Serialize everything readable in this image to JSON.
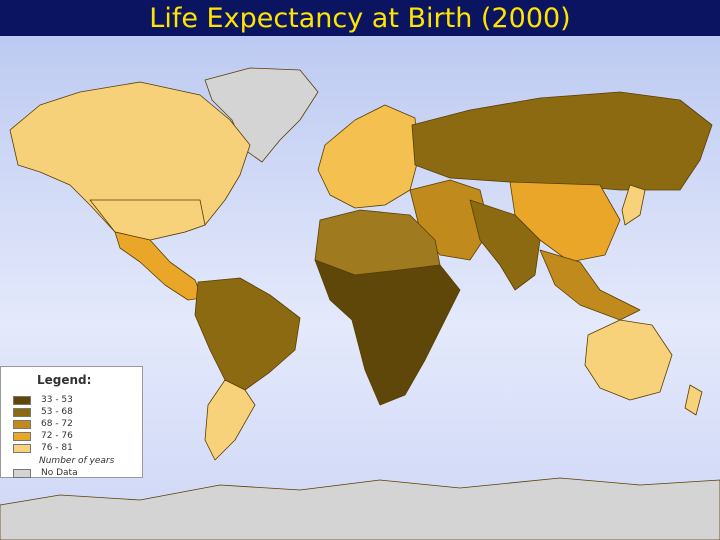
{
  "title": "Life Expectancy at Birth (2000)",
  "legend": {
    "title": "Legend:",
    "items": [
      {
        "label": "33 - 53",
        "color": "#5e4708"
      },
      {
        "label": "53 - 68",
        "color": "#8c6a12"
      },
      {
        "label": "68 - 72",
        "color": "#c08a1c"
      },
      {
        "label": "72 - 76",
        "color": "#eaa628"
      },
      {
        "label": "76 - 81",
        "color": "#f8d27a"
      }
    ],
    "note": "Number of years",
    "no_data": {
      "label": "No Data",
      "color": "#d4d4d4"
    }
  }
}
